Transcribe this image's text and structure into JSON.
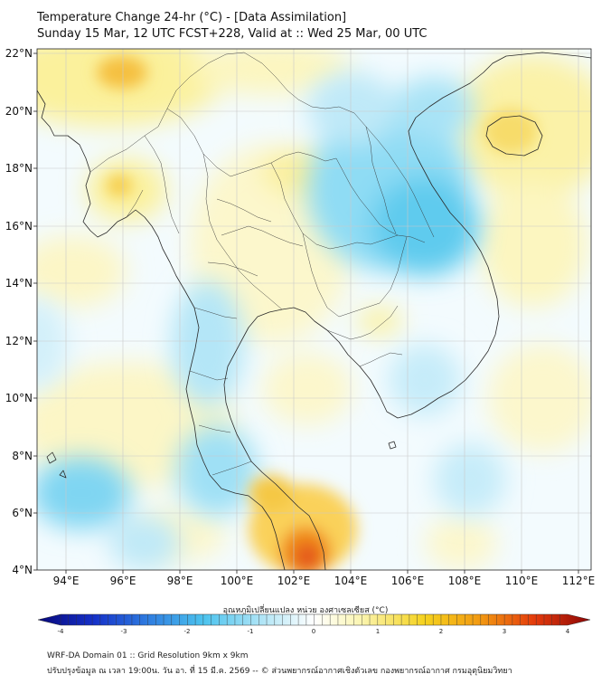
{
  "header": {
    "title": "Temperature Change 24-hr (°C) - [Data Assimilation]",
    "subtitle": "Sunday 15 Mar, 12 UTC FCST+228, Valid at :: Wed 25 Mar, 00 UTC"
  },
  "map": {
    "lat_labels": [
      "22°N",
      "20°N",
      "18°N",
      "16°N",
      "14°N",
      "12°N",
      "10°N",
      "8°N",
      "6°N",
      "4°N"
    ],
    "lon_labels": [
      "94°E",
      "96°E",
      "98°E",
      "100°E",
      "102°E",
      "104°E",
      "106°E",
      "108°E",
      "110°E",
      "112°E"
    ],
    "region": "Mainland Southeast Asia",
    "extent": {
      "lat_min": 4,
      "lat_max": 22.3,
      "lon_min": 93,
      "lon_max": 112.5
    }
  },
  "colorbar": {
    "title": "อุณหภูมิเปลี่ยนแปลง หน่วย องศาเซลเซียส (°C)",
    "ticks": [
      "-4",
      "-3",
      "-2",
      "-1",
      "0",
      "1",
      "2",
      "3",
      "4"
    ],
    "colors": [
      "#08087a",
      "#1530c8",
      "#2f7de0",
      "#4cc3ee",
      "#bde9f7",
      "#ffffff",
      "#fbf6b6",
      "#f5d21e",
      "#f29a12",
      "#e43a0c",
      "#8c0606"
    ]
  },
  "footer": {
    "line1": "WRF-DA Domain 01 :: Grid Resolution 9km x 9km",
    "line2": "ปรับปรุงข้อมูล ณ เวลา 19:00น. วัน อา. ที่ 15 มี.ค. 2569 -- © ส่วนพยากรณ์อากาศเชิงตัวเลข กองพยากรณ์อากาศ กรมอุตุนิยมวิทยา"
  }
}
